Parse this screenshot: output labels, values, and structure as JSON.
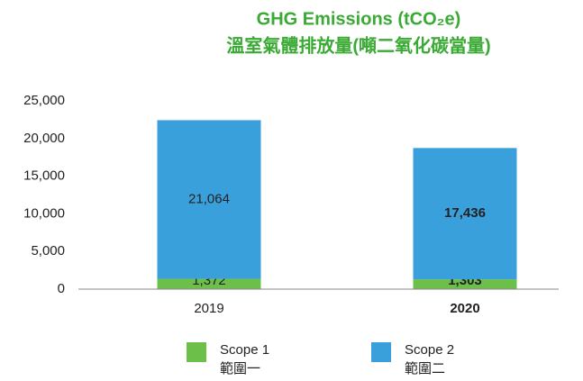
{
  "chart_data": {
    "type": "stacked_bar",
    "title": "GHG Emissions (tCO₂e)",
    "subtitle": "溫室氣體排放量(噸二氧化碳當量)",
    "categories": [
      "2019",
      "2020"
    ],
    "bold": [
      false,
      true
    ],
    "series": [
      {
        "name": "Scope 1",
        "name_zh": "範圍一",
        "color": "#6cc04a",
        "values": [
          1372,
          1303
        ],
        "value_labels": [
          "1,372",
          "1,303"
        ]
      },
      {
        "name": "Scope 2",
        "name_zh": "範圍二",
        "color": "#3aa0dc",
        "values": [
          21064,
          17436
        ],
        "value_labels": [
          "21,064",
          "17,436"
        ]
      }
    ],
    "ylim": [
      0,
      25000
    ],
    "yticks": [
      0,
      {
        "value": 5000,
        "label": "5,000"
      },
      {
        "value": 10000,
        "label": "10,000"
      },
      {
        "value": 15000,
        "label": "15,000"
      },
      {
        "value": 20000,
        "label": "20,000"
      },
      {
        "value": 25000,
        "label": "25,000"
      }
    ]
  }
}
